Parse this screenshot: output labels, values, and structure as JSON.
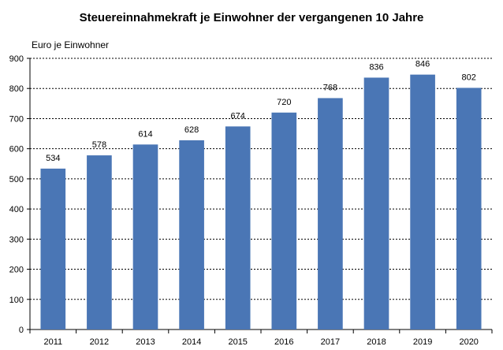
{
  "chart_data": {
    "type": "bar",
    "title": "Steuereinnahmekraft je Einwohner der vergangenen 10 Jahre",
    "ylabel": "Euro je Einwohner",
    "xlabel": "",
    "categories": [
      "2011",
      "2012",
      "2013",
      "2014",
      "2015",
      "2016",
      "2017",
      "2018",
      "2019",
      "2020"
    ],
    "values": [
      534,
      578,
      614,
      628,
      674,
      720,
      768,
      836,
      846,
      802
    ],
    "ylim": [
      0,
      900
    ],
    "yticks": [
      0,
      100,
      200,
      300,
      400,
      500,
      600,
      700,
      800,
      900
    ],
    "grid": "horizontal",
    "bar_color": "#4a76b5",
    "legend": "none"
  }
}
